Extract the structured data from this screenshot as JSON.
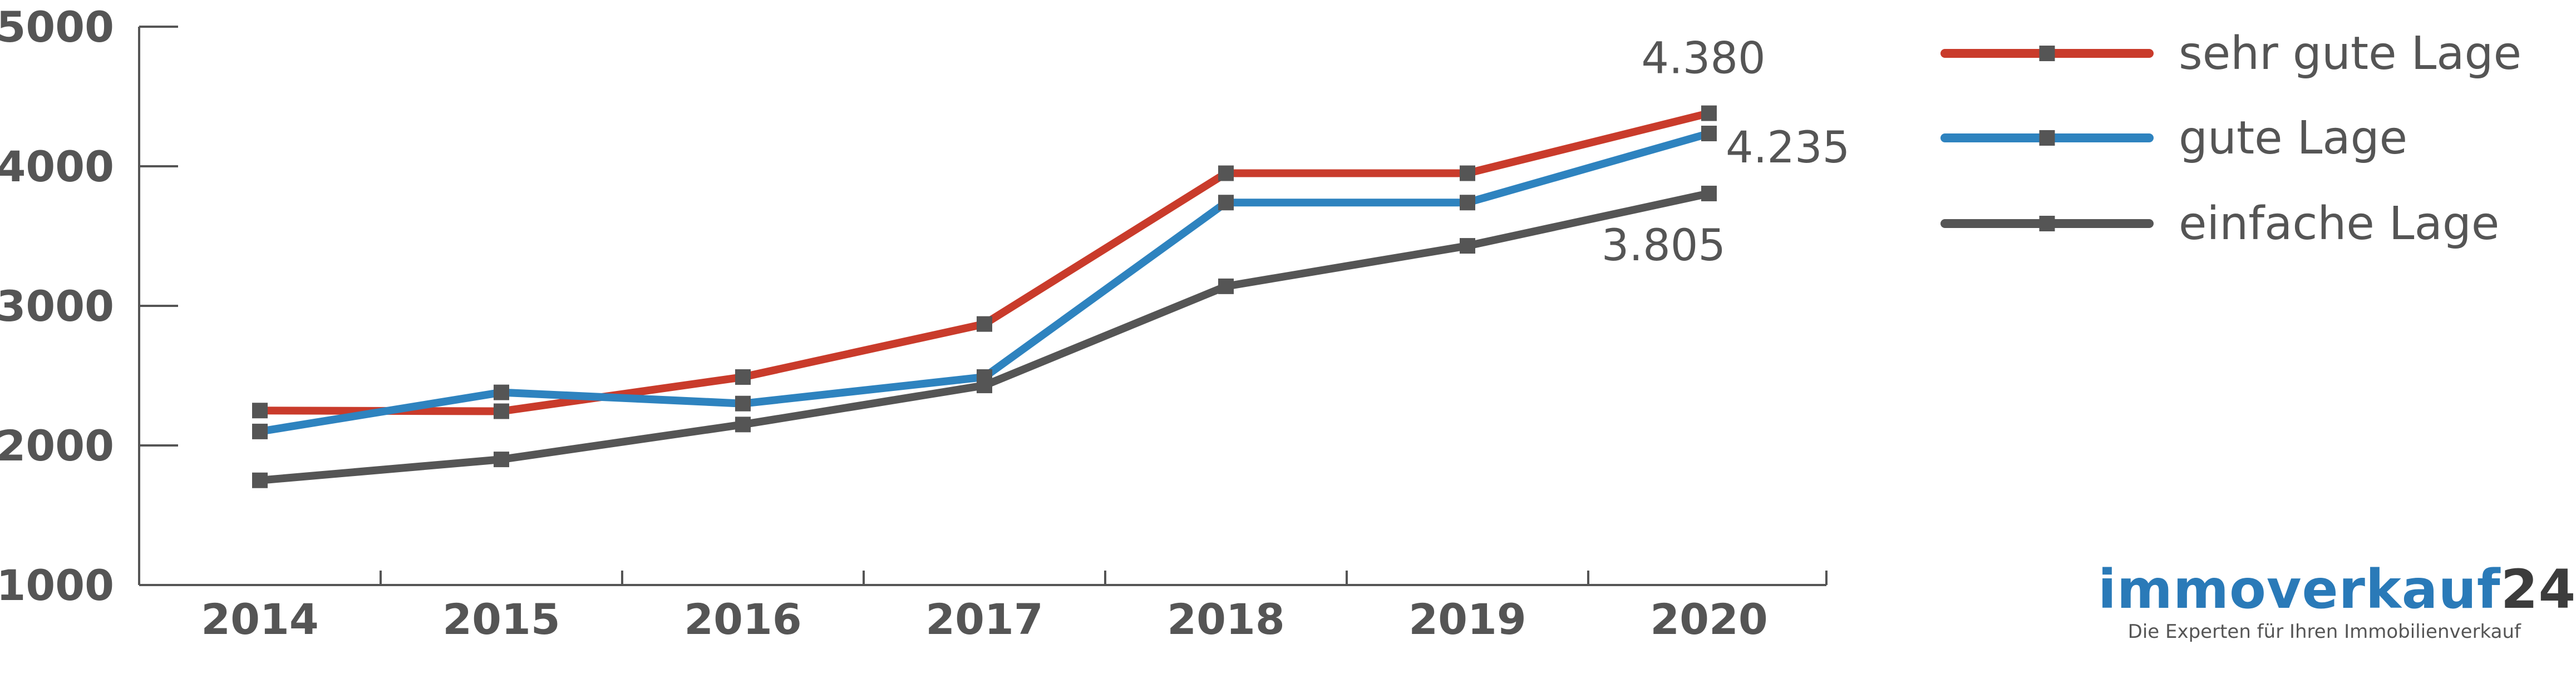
{
  "chart_data": {
    "type": "line",
    "x": [
      "2014",
      "2015",
      "2016",
      "2017",
      "2018",
      "2019",
      "2020"
    ],
    "yticks": [
      "1000",
      "2000",
      "3000",
      "4000",
      "5000"
    ],
    "ylim": [
      1000,
      5000
    ],
    "grid": false,
    "legend_position": "top-right",
    "series": [
      {
        "name": "sehr gute Lage",
        "color": "#c93b2b",
        "values": [
          2250,
          2245,
          2490,
          2870,
          3950,
          3950,
          4380
        ]
      },
      {
        "name": "gute Lage",
        "color": "#2e83bf",
        "values": [
          2100,
          2380,
          2300,
          2490,
          3740,
          3740,
          4235
        ]
      },
      {
        "name": "einfache Lage",
        "color": "#555555",
        "values": [
          1750,
          1900,
          2150,
          2430,
          3140,
          3430,
          3805
        ]
      }
    ],
    "annotations": [
      {
        "series": 0,
        "label": "4.380"
      },
      {
        "series": 1,
        "label": "4.235"
      },
      {
        "series": 2,
        "label": "3.805"
      }
    ]
  },
  "logo": {
    "brand_part1": "immoverkauf",
    "brand_part2": "24",
    "tagline": "Die Experten für Ihren Immobilienverkauf"
  }
}
